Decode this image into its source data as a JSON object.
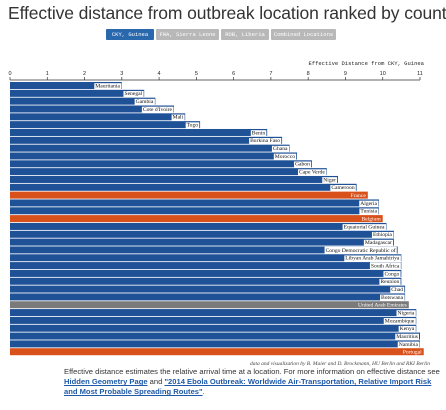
{
  "title": "Effective distance from outbreak location ranked by country",
  "tabs": [
    {
      "label": "CKY, Guinea",
      "active": true
    },
    {
      "label": "FNA, Sierra Leone",
      "active": false
    },
    {
      "label": "ROB, Liberia",
      "active": false
    },
    {
      "label": "Combined Locations",
      "active": false
    }
  ],
  "credit": "data and visualization by B. Maier and D. Brockmann, HU Berlin and RKI Berlin",
  "note": {
    "text1": "Effective distance estimates the relative arrival time at a location. For more information on effective distance see",
    "link1": "Hidden Geometry Page",
    "text2": " and ",
    "link2": "\"2014 Ebola Outbreak: Worldwide Air-Transportation, Relative Import Risk and Most Probable Spreading Routes\"",
    "text3": "."
  },
  "colors": {
    "default": "#1f5197",
    "highlight": "#d8501a",
    "other": "#7a7a7a",
    "tab_active": "#2a68ad",
    "tab_inactive": "#b8b8b8"
  },
  "chart_data": {
    "type": "bar",
    "orientation": "horizontal",
    "xlabel": "Effective Distance from CKY, Guinea",
    "xlim": [
      0,
      11
    ],
    "xticks": [
      0,
      1,
      2,
      3,
      4,
      5,
      6,
      7,
      8,
      9,
      10,
      11
    ],
    "categories": [
      "Mauritania",
      "Senegal",
      "Gambia",
      "Cote d'Ivoire",
      "Mali",
      "Togo",
      "Benin",
      "Burkina Faso",
      "Ghana",
      "Morocco",
      "Gabon",
      "Cape Verde",
      "Niger",
      "Cameroon",
      "France",
      "Algeria",
      "Tunisia",
      "Belgium",
      "Equatorial Guinea",
      "Ethiopia",
      "Madagascar",
      "Congo Democratic Republic of",
      "Libyan Arab Jamahiriya",
      "South Africa",
      "Congo",
      "Reunion",
      "Chad",
      "Botswana",
      "United Arab Emirates",
      "Nigeria",
      "Mozambique",
      "Kenya",
      "Mauritius",
      "Namibia",
      "Portugal"
    ],
    "values": [
      3.0,
      3.6,
      3.9,
      4.4,
      4.7,
      5.1,
      6.9,
      7.3,
      7.5,
      7.7,
      8.1,
      8.5,
      8.8,
      9.3,
      9.6,
      9.9,
      9.9,
      10.0,
      10.1,
      10.3,
      10.3,
      10.4,
      10.5,
      10.5,
      10.5,
      10.5,
      10.6,
      10.6,
      10.7,
      10.9,
      10.9,
      10.9,
      11.0,
      11.0,
      11.1
    ],
    "highlight": [
      "highlight",
      "highlight",
      "highlight"
    ],
    "bar_colors": [
      "default",
      "default",
      "default",
      "default",
      "default",
      "default",
      "default",
      "default",
      "default",
      "default",
      "default",
      "default",
      "default",
      "default",
      "highlight",
      "default",
      "default",
      "highlight",
      "default",
      "default",
      "default",
      "default",
      "default",
      "default",
      "default",
      "default",
      "default",
      "default",
      "other",
      "default",
      "default",
      "default",
      "default",
      "default",
      "highlight"
    ]
  }
}
